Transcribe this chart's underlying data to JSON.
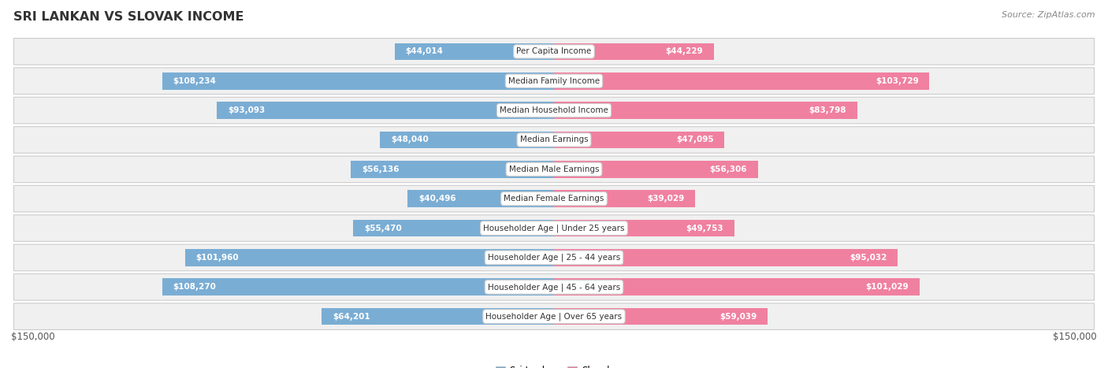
{
  "title": "SRI LANKAN VS SLOVAK INCOME",
  "source": "Source: ZipAtlas.com",
  "max_value": 150000,
  "categories": [
    "Per Capita Income",
    "Median Family Income",
    "Median Household Income",
    "Median Earnings",
    "Median Male Earnings",
    "Median Female Earnings",
    "Householder Age | Under 25 years",
    "Householder Age | 25 - 44 years",
    "Householder Age | 45 - 64 years",
    "Householder Age | Over 65 years"
  ],
  "sri_lankan": [
    44014,
    108234,
    93093,
    48040,
    56136,
    40496,
    55470,
    101960,
    108270,
    64201
  ],
  "slovak": [
    44229,
    103729,
    83798,
    47095,
    56306,
    39029,
    49753,
    95032,
    101029,
    59039
  ],
  "sri_lankan_color": "#7aadd4",
  "slovak_color": "#f080a0",
  "row_bg_color": "#f0f0f0",
  "row_border_color": "#cccccc",
  "label_box_color": "#ffffff",
  "label_box_border": "#cccccc",
  "title_color": "#333333",
  "source_color": "#888888",
  "tick_label_color": "#555555",
  "value_color_inside": "#ffffff",
  "value_color_outside": "#444444",
  "inside_threshold": 25000,
  "xlabel_left": "$150,000",
  "xlabel_right": "$150,000",
  "legend_sri_lankan": "Sri Lankan",
  "legend_slovak": "Slovak"
}
